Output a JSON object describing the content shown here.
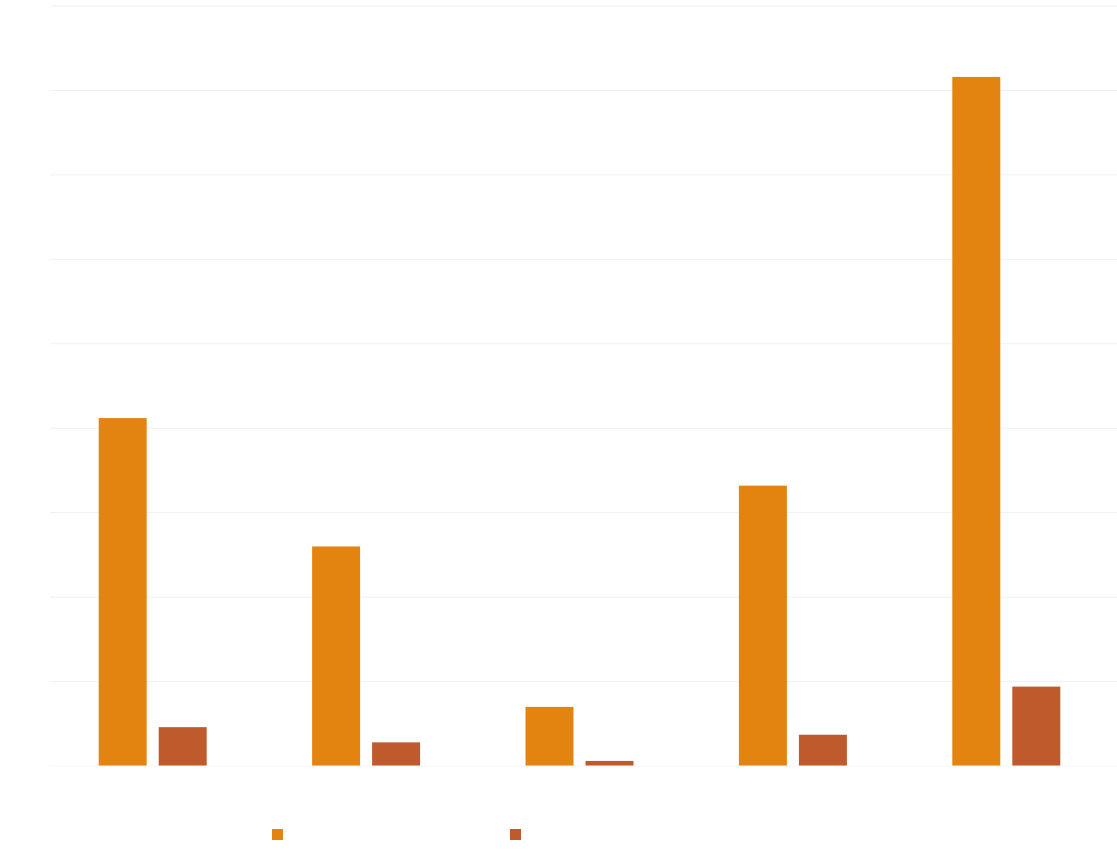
{
  "chart_data": {
    "type": "bar",
    "categories": [
      "",
      "",
      "",
      "",
      ""
    ],
    "series": [
      {
        "name": "",
        "color": "#E48410",
        "values": [
          2060,
          1300,
          350,
          1660,
          4080
        ]
      },
      {
        "name": "",
        "color": "#BE5A2B",
        "values": [
          230,
          140,
          30,
          185,
          470
        ]
      }
    ],
    "ylim": [
      0,
      4500
    ],
    "yticks": [
      0,
      500,
      1000,
      1500,
      2000,
      2500,
      3000,
      3500,
      4000,
      4500
    ],
    "ytick_labels": [
      "",
      "",
      "",
      "",
      "",
      "",
      "",
      "",
      "",
      ""
    ],
    "title": "",
    "xlabel": "",
    "ylabel": "",
    "grid": true,
    "legend_position": "bottom-center"
  }
}
